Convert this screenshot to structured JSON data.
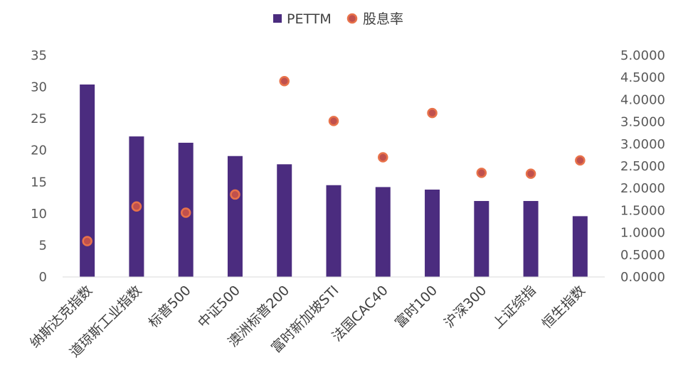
{
  "chart_data": {
    "type": "bar",
    "categories": [
      "纳斯达克指数",
      "道琼斯工业指数",
      "标普500",
      "中证500",
      "澳洲标普200",
      "富时新加坡STI",
      "法国CAC40",
      "富时100",
      "沪深300",
      "上证综指",
      "恒生指数"
    ],
    "series": [
      {
        "name": "PETTM",
        "type": "bar",
        "axis": "left",
        "color": "#4B2C7F",
        "values": [
          30.4,
          22.2,
          21.2,
          19.1,
          17.8,
          14.5,
          14.2,
          13.8,
          12.0,
          12.0,
          9.6
        ]
      },
      {
        "name": "股息率",
        "type": "scatter",
        "axis": "right",
        "color": "#E8724A",
        "fill": "#C0504D",
        "values": [
          0.81,
          1.59,
          1.45,
          1.86,
          4.42,
          3.52,
          2.7,
          3.7,
          2.35,
          2.33,
          2.63
        ]
      }
    ],
    "left_axis": {
      "min": 0,
      "max": 35,
      "step": 5,
      "ticks": [
        "0",
        "5",
        "10",
        "15",
        "20",
        "25",
        "30",
        "35"
      ]
    },
    "right_axis": {
      "min": 0,
      "max": 5,
      "step": 0.5,
      "ticks": [
        "0.0000",
        "0.5000",
        "1.0000",
        "1.5000",
        "2.0000",
        "2.5000",
        "3.0000",
        "3.5000",
        "4.0000",
        "4.5000",
        "5.0000"
      ]
    },
    "legend_position": "top-center",
    "grid": false
  }
}
